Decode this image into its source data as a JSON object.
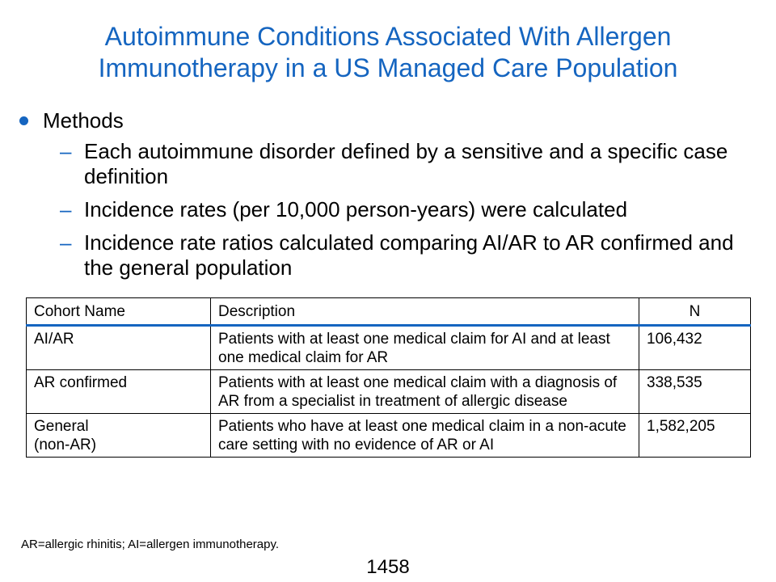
{
  "title": {
    "line1": "Autoimmune Conditions Associated With Allergen",
    "line2": "Immunotherapy in a US Managed Care Population"
  },
  "methods": {
    "heading": "Methods",
    "items": [
      "Each autoimmune disorder defined by a sensitive and a specific case definition",
      "Incidence rates (per 10,000 person-years) were calculated",
      "Incidence rate ratios calculated comparing AI/AR to AR confirmed and the general population"
    ]
  },
  "table": {
    "headers": [
      "Cohort Name",
      "Description",
      "N"
    ],
    "rows": [
      {
        "cohort": "AI/AR",
        "description": "Patients with at least one medical claim for AI and at least one medical claim for AR",
        "n": "106,432"
      },
      {
        "cohort": "AR confirmed",
        "description": "Patients with at least one medical claim with a diagnosis of AR from a specialist in treatment of allergic disease",
        "n": "338,535"
      },
      {
        "cohort_line1": "General",
        "cohort_line2": "(non-AR)",
        "description": "Patients who have at least one medical claim in a non-acute care setting with no evidence of AR or AI",
        "n": "1,582,205"
      }
    ]
  },
  "footnote": "AR=allergic rhinitis; AI=allergen immunotherapy.",
  "page_number": "1458",
  "colors": {
    "accent": "#1565c0",
    "text": "#000000",
    "background": "#ffffff"
  }
}
